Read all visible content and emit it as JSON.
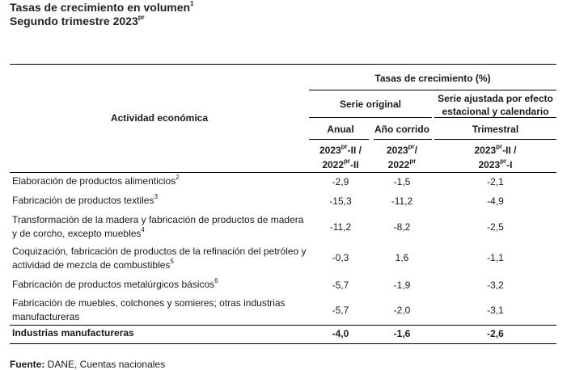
{
  "title_line1": "Tasas de crecimiento en volumen",
  "title_line1_sup": "1",
  "title_line2": "Segundo trimestre 2023",
  "title_line2_sup": "pr",
  "header": {
    "activity": "Actividad económica",
    "growth_rates": "Tasas de crecimiento (%)",
    "original_series": "Serie original",
    "adjusted_series_l1": "Serie ajustada por efecto",
    "adjusted_series_l2": "estacional y calendario",
    "annual": "Anual",
    "year_to_date": "Año corrido",
    "quarterly": "Trimestral",
    "col1_l1": "2023",
    "col1_sup1": "pr",
    "col1_l1_tail": "-II /",
    "col1_l2": "2022",
    "col1_sup2": "pr",
    "col1_l2_tail": "-II",
    "col2_l1": "2023",
    "col2_sup1": "pr",
    "col2_l1_tail": "/",
    "col2_l2": "2022",
    "col2_sup2": "pr",
    "col3_l1": "2023",
    "col3_sup1": "pr",
    "col3_l1_tail": "-II /",
    "col3_l2": "2023",
    "col3_sup2": "pr",
    "col3_l2_tail": "-I"
  },
  "rows": [
    {
      "l1": "Elaboración de productos alimenticios",
      "sup": "2",
      "l2": "",
      "anual": "-2,9",
      "corrido": "-1,5",
      "trimestral": "-2,1"
    },
    {
      "l1": "Fabricación de productos textiles",
      "sup": "3",
      "l2": "",
      "anual": "-15,3",
      "corrido": "-11,2",
      "trimestral": "-4,9"
    },
    {
      "l1": "Transformación de la madera y fabricación de productos de madera",
      "l2": "y de corcho, excepto muebles",
      "sup": "4",
      "anual": "-11,2",
      "corrido": "-8,2",
      "trimestral": "-2,5"
    },
    {
      "l1": "Coquización, fabricación de productos de la refinación del petróleo y",
      "l2": "actividad de mezcla de combustibles",
      "sup": "5",
      "anual": "-0,3",
      "corrido": "1,6",
      "trimestral": "-1,1"
    },
    {
      "l1": "Fabricación de productos metalúrgicos básicos",
      "sup": "6",
      "l2": "",
      "anual": "-5,7",
      "corrido": "-1,9",
      "trimestral": "-3,2"
    },
    {
      "l1": "Fabricación de muebles, colchones y somieres; otras industrias",
      "l2": "manufactureras",
      "sup": "",
      "anual": "-5,7",
      "corrido": "-2,0",
      "trimestral": "-3,1"
    }
  ],
  "total": {
    "label": "Industrias manufactureras",
    "anual": "-4,0",
    "corrido": "-1,6",
    "trimestral": "-2,6"
  },
  "source_label": "Fuente:",
  "source_text": " DANE, Cuentas nacionales"
}
